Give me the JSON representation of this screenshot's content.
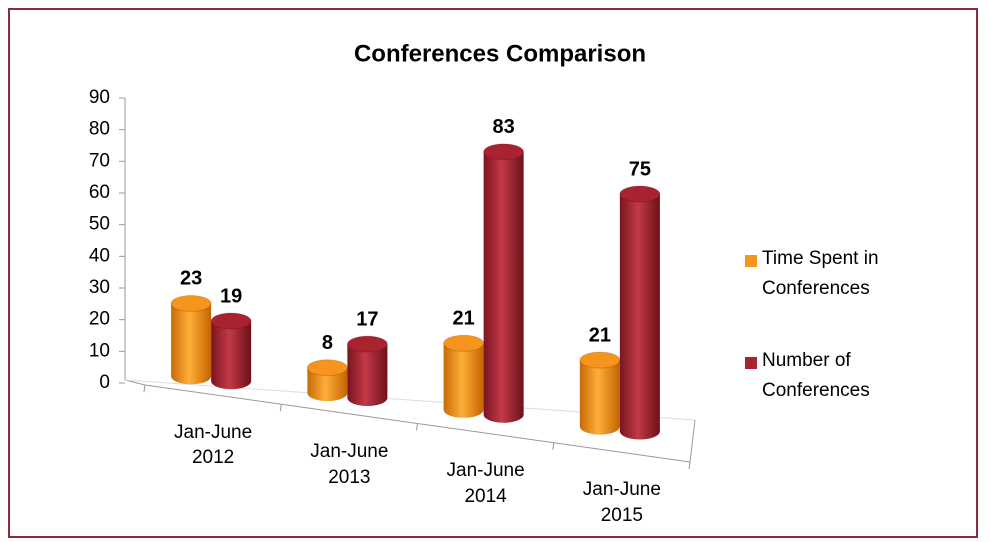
{
  "chart_data": {
    "type": "bar",
    "title": "Conferences Comparison",
    "categories": [
      "Jan-June 2012",
      "Jan-June 2013",
      "Jan-June 2014",
      "Jan-June 2015"
    ],
    "series": [
      {
        "name": "Time Spent in Conferences",
        "color": "#f7941d",
        "values": [
          23,
          8,
          21,
          21
        ]
      },
      {
        "name": "Number of Conferences",
        "color": "#a8232f",
        "values": [
          19,
          17,
          83,
          75
        ]
      }
    ],
    "ylim": [
      0,
      90
    ],
    "yticks": [
      0,
      10,
      20,
      30,
      40,
      50,
      60,
      70,
      80,
      90
    ],
    "legend": "right"
  }
}
